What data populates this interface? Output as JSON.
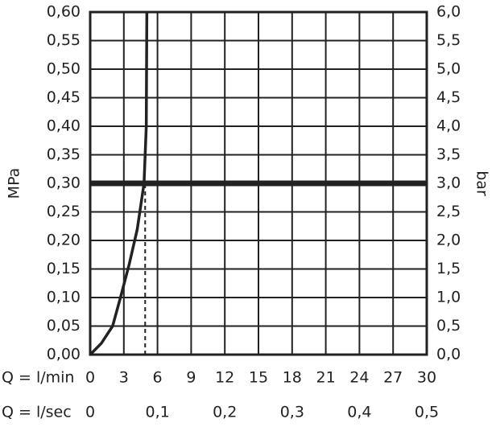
{
  "chart_data": {
    "type": "line",
    "ylabel": "MPa",
    "y2label": "bar",
    "xlabel": "Q = l/min",
    "x2label": "Q = l/sec",
    "xlim": [
      0,
      30
    ],
    "xticks": [
      0,
      3,
      6,
      9,
      12,
      15,
      18,
      21,
      24,
      27,
      30
    ],
    "x2lim": [
      0,
      0.5
    ],
    "x2ticks": [
      0,
      {
        "value": 0.1,
        "label": "0,1"
      },
      {
        "value": 0.2,
        "label": "0,2"
      },
      {
        "value": 0.3,
        "label": "0,3"
      },
      {
        "value": 0.4,
        "label": "0,4"
      },
      {
        "value": 0.5,
        "label": "0,5"
      }
    ],
    "ylim": [
      0,
      0.6
    ],
    "yticks": [
      {
        "value": 0,
        "label": "0,00"
      },
      {
        "value": 0.05,
        "label": "0,05"
      },
      {
        "value": 0.1,
        "label": "0,10"
      },
      {
        "value": 0.15,
        "label": "0,15"
      },
      {
        "value": 0.2,
        "label": "0,20"
      },
      {
        "value": 0.25,
        "label": "0,25"
      },
      {
        "value": 0.3,
        "label": "0,30"
      },
      {
        "value": 0.35,
        "label": "0,35"
      },
      {
        "value": 0.4,
        "label": "0,40"
      },
      {
        "value": 0.45,
        "label": "0,45"
      },
      {
        "value": 0.5,
        "label": "0,50"
      },
      {
        "value": 0.55,
        "label": "0,55"
      },
      {
        "value": 0.6,
        "label": "0,60"
      }
    ],
    "y2lim": [
      0,
      6
    ],
    "y2ticks": [
      {
        "value": 0,
        "label": "0,0"
      },
      {
        "value": 0.5,
        "label": "0,5"
      },
      {
        "value": 1,
        "label": "1,0"
      },
      {
        "value": 1.5,
        "label": "1,5"
      },
      {
        "value": 2,
        "label": "2,0"
      },
      {
        "value": 2.5,
        "label": "2,5"
      },
      {
        "value": 3,
        "label": "3,0"
      },
      {
        "value": 3.5,
        "label": "3,5"
      },
      {
        "value": 4,
        "label": "4,0"
      },
      {
        "value": 4.5,
        "label": "4,5"
      },
      {
        "value": 5,
        "label": "5,0"
      },
      {
        "value": 5.5,
        "label": "5,5"
      },
      {
        "value": 6,
        "label": "6,0"
      }
    ],
    "grid": true,
    "series": [
      {
        "color": "#222222",
        "x": [
          0,
          1,
          2,
          2.7,
          3.5,
          4.2,
          4.8,
          5.0,
          5.05
        ],
        "values": [
          0,
          0.02,
          0.05,
          0.1,
          0.16,
          0.22,
          0.3,
          0.4,
          0.6
        ]
      }
    ],
    "reference_line": {
      "y": 0.3,
      "color": "#222222"
    },
    "dashed_line": {
      "x": 4.9,
      "y": 0.3
    }
  }
}
